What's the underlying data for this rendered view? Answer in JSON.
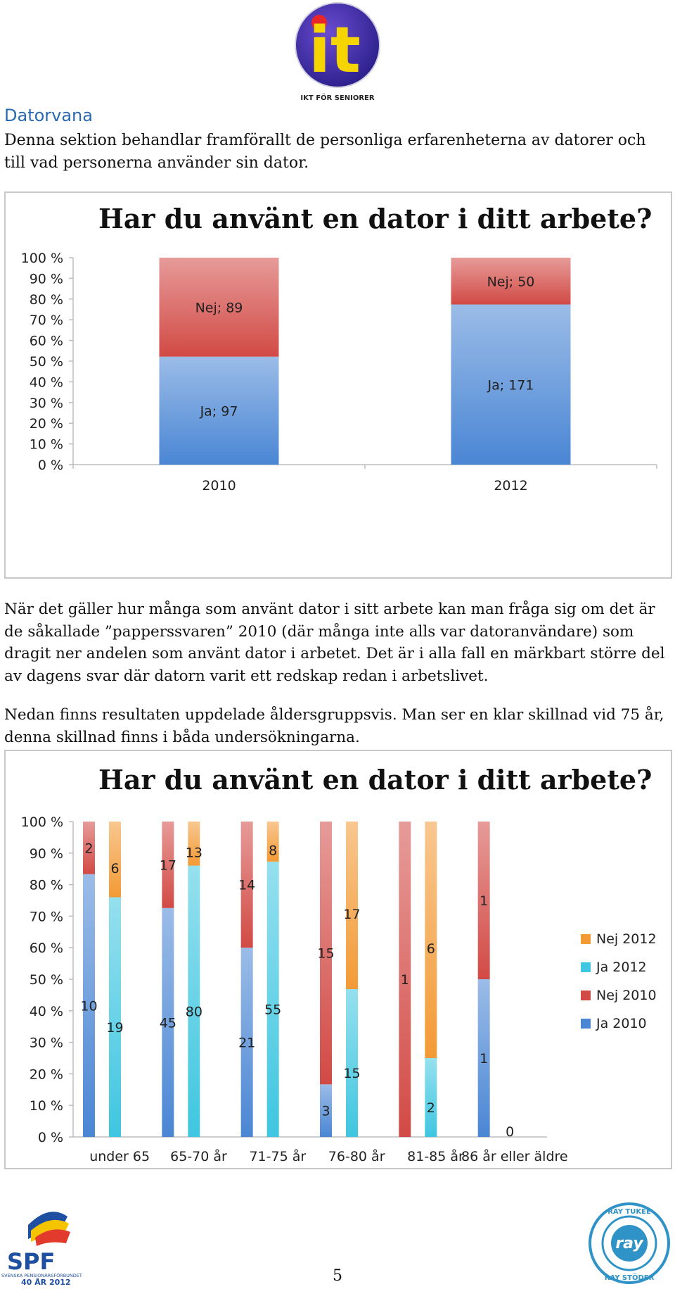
{
  "header": {
    "logo_text": "it",
    "logo_caption": "IKT FÖR SENIORER"
  },
  "section": {
    "title": "Datorvana",
    "intro": "Denna sektion behandlar framförallt de personliga erfarenheterna av datorer och till vad personerna använder sin dator."
  },
  "paragraphs": [
    "När det gäller hur många som använt dator i sitt arbete kan man fråga sig om det är de såkallade ”papperssvaren” 2010 (där många inte alls var datoranvändare) som dragit ner andelen som använt dator i arbetet. Det är i alla fall en märkbart större del av dagens svar där datorn varit ett redskap redan i arbetslivet.",
    "Nedan finns resultaten uppdelade åldersgruppsvis. Man ser en klar skillnad vid 75 år, denna skillnad finns i båda undersökningarna."
  ],
  "chart_data": [
    {
      "type": "bar",
      "stacked": "percent",
      "title": "Har du använt en dator i ditt arbete?",
      "categories": [
        "2010",
        "2012"
      ],
      "series": [
        {
          "name": "Ja",
          "values": [
            97,
            171
          ],
          "color": "#4a86d4"
        },
        {
          "name": "Nej",
          "values": [
            89,
            50
          ],
          "color": "#d24a45"
        }
      ],
      "data_labels": [
        [
          "Ja; 97",
          "Ja; 171"
        ],
        [
          "Nej; 89",
          "Nej; 50"
        ]
      ],
      "y_ticks": [
        "0 %",
        "10 %",
        "20 %",
        "30 %",
        "40 %",
        "50 %",
        "60 %",
        "70 %",
        "80 %",
        "90 %",
        "100 %"
      ],
      "ylim": [
        0,
        100
      ]
    },
    {
      "type": "bar",
      "stacked": "percent",
      "title": "Har du använt en dator i ditt arbete?",
      "categories": [
        "under 65",
        "65-70 år",
        "71-75 år",
        "76-80 år",
        "81-85 år",
        "86 år eller äldre"
      ],
      "groups": [
        {
          "series": [
            {
              "name": "Ja 2010",
              "values": [
                10,
                45,
                21,
                3,
                0,
                1
              ],
              "color": "#4a86d4"
            },
            {
              "name": "Nej 2010",
              "values": [
                2,
                17,
                14,
                15,
                1,
                1
              ],
              "color": "#d24a45"
            }
          ]
        },
        {
          "series": [
            {
              "name": "Ja 2012",
              "values": [
                19,
                80,
                55,
                15,
                2,
                0
              ],
              "color": "#3fc6e0"
            },
            {
              "name": "Nej 2012",
              "values": [
                6,
                13,
                8,
                17,
                6,
                0
              ],
              "color": "#f39a35"
            }
          ]
        }
      ],
      "legend": [
        "Nej 2012",
        "Ja 2012",
        "Nej 2010",
        "Ja 2010"
      ],
      "legend_position": "right",
      "y_ticks": [
        "0 %",
        "10 %",
        "20 %",
        "30 %",
        "40 %",
        "50 %",
        "60 %",
        "70 %",
        "80 %",
        "90 %",
        "100 %"
      ],
      "ylim": [
        0,
        100
      ]
    }
  ],
  "footer": {
    "spf_name": "SPF",
    "spf_sub": "SVENSKA PENSIONÄRSFÖRBUNDET",
    "spf_year": "40 ÅR 2012",
    "ray_top": "RAY TUKEE",
    "ray_bottom": "RAY STÖDER",
    "ray_center": "ray",
    "page_number": "5"
  }
}
